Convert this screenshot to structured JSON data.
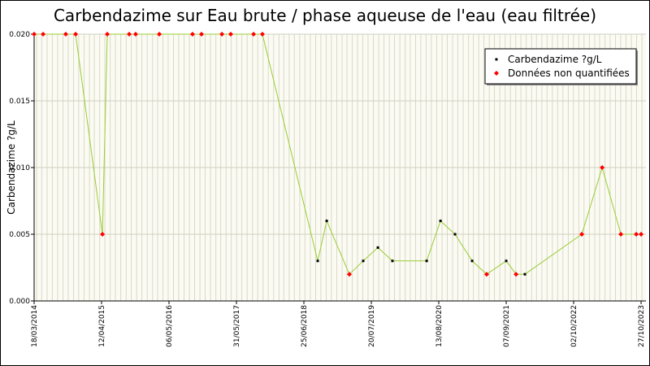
{
  "chart_data": {
    "type": "line",
    "title": "Carbendazime sur Eau brute / phase aqueuse de l'eau (eau filtrée)",
    "ylabel": "Carbendazime ?g/L",
    "x": [
      "2014-03-18",
      "2014-05-09",
      "2014-09-17",
      "2014-11-13",
      "2015-04-17",
      "2015-05-15",
      "2015-09-19",
      "2015-10-26",
      "2016-03-11",
      "2016-09-19",
      "2016-11-10",
      "2017-03-08",
      "2017-04-28",
      "2017-09-07",
      "2017-10-28",
      "2018-09-13",
      "2018-11-04",
      "2019-03-15",
      "2019-06-03",
      "2019-08-27",
      "2019-11-19",
      "2020-06-04",
      "2020-08-23",
      "2020-11-15",
      "2021-02-22",
      "2021-05-17",
      "2021-09-07",
      "2021-11-03",
      "2021-12-24",
      "2022-11-18",
      "2023-03-16",
      "2023-07-02",
      "2023-09-29",
      "2023-10-27"
    ],
    "series": [
      {
        "name": "Carbendazime ?g/L",
        "color": "#000000",
        "values": [
          null,
          null,
          null,
          null,
          null,
          null,
          null,
          null,
          null,
          null,
          null,
          null,
          null,
          null,
          null,
          0.003,
          0.006,
          null,
          0.003,
          0.004,
          0.003,
          0.003,
          0.006,
          0.005,
          0.003,
          null,
          0.003,
          null,
          0.002,
          null,
          null,
          null,
          null,
          null
        ]
      },
      {
        "name": "Données non quantifiées",
        "color": "#ff0000",
        "values": [
          0.02,
          0.02,
          0.02,
          0.02,
          0.005,
          0.02,
          0.02,
          0.02,
          0.02,
          0.02,
          0.02,
          0.02,
          0.02,
          0.02,
          0.02,
          null,
          null,
          0.002,
          null,
          null,
          null,
          null,
          null,
          null,
          null,
          0.002,
          null,
          0.002,
          null,
          0.005,
          0.01,
          0.005,
          0.005,
          0.005
        ]
      }
    ],
    "line_color": "#99cc33",
    "xlim": [
      "2014-03-18",
      "2023-11-24"
    ],
    "xticks": [
      {
        "value": "2014-03-18",
        "label": "18/03/2014"
      },
      {
        "value": "2015-04-12",
        "label": "12/04/2015"
      },
      {
        "value": "2016-05-06",
        "label": "06/05/2016"
      },
      {
        "value": "2017-05-31",
        "label": "31/05/2017"
      },
      {
        "value": "2018-06-25",
        "label": "25/06/2018"
      },
      {
        "value": "2019-07-20",
        "label": "20/07/2019"
      },
      {
        "value": "2020-08-13",
        "label": "13/08/2020"
      },
      {
        "value": "2021-09-07",
        "label": "07/09/2021"
      },
      {
        "value": "2022-10-02",
        "label": "02/10/2022"
      },
      {
        "value": "2023-10-27",
        "label": "27/10/2023"
      }
    ],
    "ylim": [
      0,
      0.02
    ],
    "yticks": [
      {
        "value": 0,
        "label": "0.000"
      },
      {
        "value": 0.005,
        "label": "0.005"
      },
      {
        "value": 0.01,
        "label": "0.010"
      },
      {
        "value": 0.015,
        "label": "0.015"
      },
      {
        "value": 0.02,
        "label": "0.020"
      }
    ],
    "grid": true,
    "legend": "upper right"
  }
}
